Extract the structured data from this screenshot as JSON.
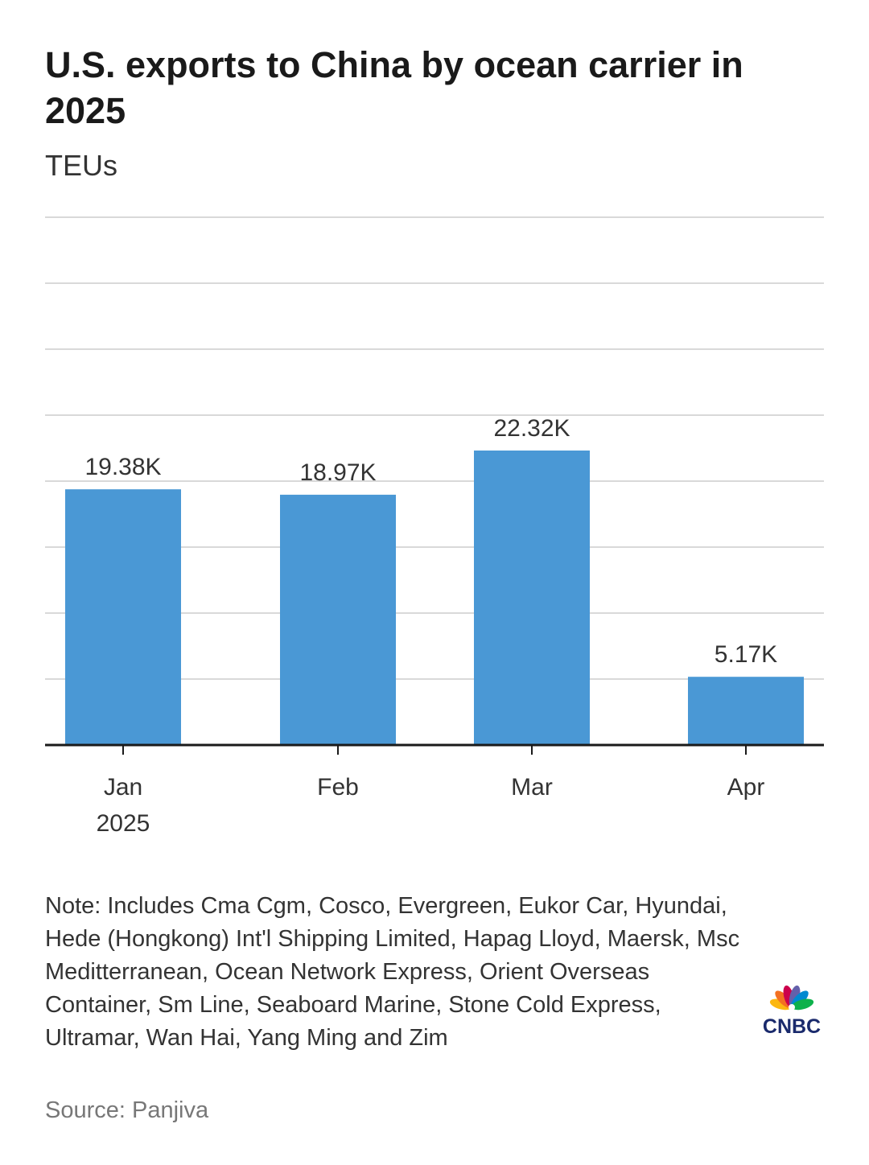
{
  "title": "U.S. exports to China by ocean carrier in 2025",
  "subtitle": "TEUs",
  "note": "Note: Includes Cma Cgm, Cosco, Evergreen, Eukor Car, Hyundai, Hede (Hongkong) Int'l Shipping Limited, Hapag Lloyd, Maersk, Msc Meditterranean, Ocean Network Express, Orient Overseas Container, Sm Line, Seaboard Marine, Stone Cold Express, Ultramar, Wan Hai, Yang Ming and Zim",
  "source": "Source: Panjiva",
  "logo": {
    "text": "CNBC",
    "text_color": "#1a2a6c"
  },
  "colors": {
    "bar": "#4a98d5",
    "grid": "#d9d9d9",
    "axis": "#1a1a1a",
    "label": "#333333"
  },
  "chart_data": {
    "type": "bar",
    "title": "U.S. exports to China by ocean carrier in 2025",
    "ylabel": "TEUs",
    "categories": [
      {
        "line1": "Jan",
        "line2": "2025"
      },
      {
        "line1": "Feb",
        "line2": ""
      },
      {
        "line1": "Mar",
        "line2": ""
      },
      {
        "line1": "Apr",
        "line2": ""
      }
    ],
    "values": [
      19380,
      18970,
      22320,
      5170
    ],
    "value_labels": [
      "19.38K",
      "18.97K",
      "22.32K",
      "5.17K"
    ],
    "ylim": [
      0,
      40000
    ],
    "ytick_step": 5000,
    "grid": true
  }
}
